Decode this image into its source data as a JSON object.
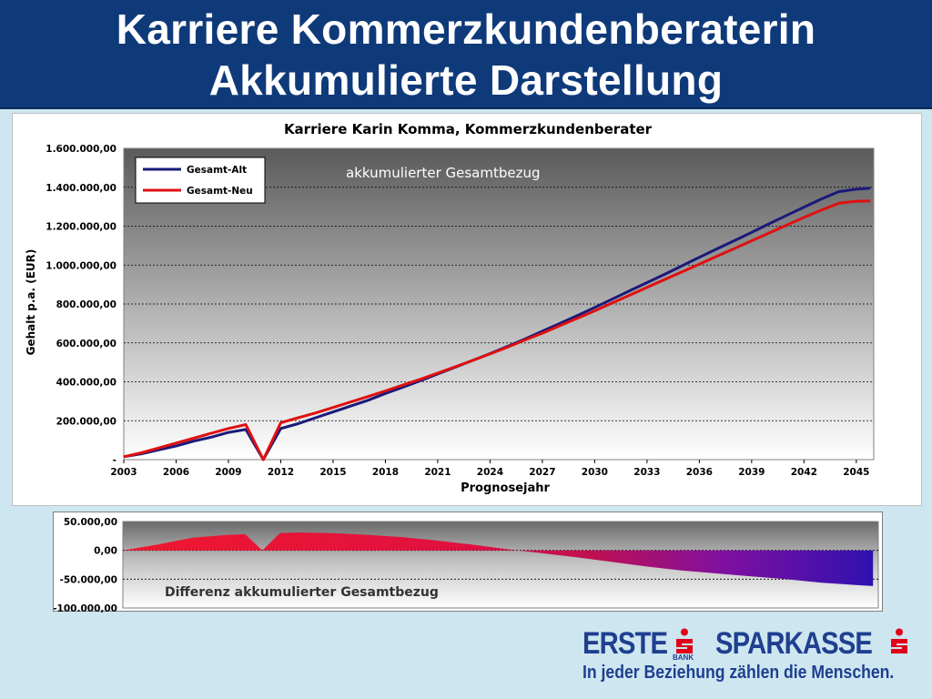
{
  "header": {
    "title_line1": "Karriere Kommerzkundenberaterin",
    "title_line2": "Akkumulierte Darstellung"
  },
  "chart_data": [
    {
      "type": "line",
      "title": "Karriere Karin Komma, Kommerzkundenberater",
      "annotation": "akkumulierter Gesamtbezug",
      "xlabel": "Prognosejahr",
      "ylabel": "Gehalt p.a. (EUR)",
      "xlim": [
        2003,
        2046
      ],
      "ylim": [
        0,
        1600000
      ],
      "x_tick_labels": [
        "2003",
        "2006",
        "2009",
        "2012",
        "2015",
        "2018",
        "2021",
        "2024",
        "2027",
        "2030",
        "2033",
        "2036",
        "2039",
        "2042",
        "2045"
      ],
      "y_tick_labels": [
        "-",
        "200.000,00",
        "400.000,00",
        "600.000,00",
        "800.000,00",
        "1.000.000,00",
        "1.200.000,00",
        "1.400.000,00",
        "1.600.000,00"
      ],
      "grid": true,
      "legend_position": "top-left",
      "series": [
        {
          "name": "Gesamt-Alt",
          "color": "#1a1a7a",
          "points": [
            [
              2003,
              15000
            ],
            [
              2004,
              30000
            ],
            [
              2005,
              50000
            ],
            [
              2006,
              70000
            ],
            [
              2007,
              95000
            ],
            [
              2008,
              115000
            ],
            [
              2009,
              140000
            ],
            [
              2010,
              155000
            ],
            [
              2011,
              0
            ],
            [
              2012,
              160000
            ],
            [
              2013,
              185000
            ],
            [
              2014,
              215000
            ],
            [
              2015,
              245000
            ],
            [
              2016,
              275000
            ],
            [
              2017,
              305000
            ],
            [
              2018,
              340000
            ],
            [
              2019,
              372000
            ],
            [
              2020,
              405000
            ],
            [
              2021,
              440000
            ],
            [
              2022,
              475000
            ],
            [
              2023,
              510000
            ],
            [
              2024,
              545000
            ],
            [
              2025,
              582000
            ],
            [
              2026,
              620000
            ],
            [
              2027,
              660000
            ],
            [
              2028,
              700000
            ],
            [
              2029,
              740000
            ],
            [
              2030,
              782000
            ],
            [
              2031,
              825000
            ],
            [
              2032,
              868000
            ],
            [
              2033,
              910000
            ],
            [
              2034,
              952000
            ],
            [
              2035,
              996000
            ],
            [
              2036,
              1040000
            ],
            [
              2037,
              1083000
            ],
            [
              2038,
              1125000
            ],
            [
              2039,
              1168000
            ],
            [
              2040,
              1212000
            ],
            [
              2041,
              1255000
            ],
            [
              2042,
              1298000
            ],
            [
              2043,
              1340000
            ],
            [
              2044,
              1378000
            ],
            [
              2045,
              1390000
            ],
            [
              2045.8,
              1395000
            ]
          ]
        },
        {
          "name": "Gesamt-Neu",
          "color": "#e01010",
          "points": [
            [
              2003,
              15000
            ],
            [
              2004,
              35000
            ],
            [
              2005,
              60000
            ],
            [
              2006,
              85000
            ],
            [
              2007,
              110000
            ],
            [
              2008,
              135000
            ],
            [
              2009,
              160000
            ],
            [
              2010,
              180000
            ],
            [
              2011,
              0
            ],
            [
              2012,
              190000
            ],
            [
              2013,
              215000
            ],
            [
              2014,
              240000
            ],
            [
              2015,
              268000
            ],
            [
              2016,
              296000
            ],
            [
              2017,
              324000
            ],
            [
              2018,
              353000
            ],
            [
              2019,
              383000
            ],
            [
              2020,
              413000
            ],
            [
              2021,
              445000
            ],
            [
              2022,
              477000
            ],
            [
              2023,
              510000
            ],
            [
              2024,
              543000
            ],
            [
              2025,
              578000
            ],
            [
              2026,
              615000
            ],
            [
              2027,
              650000
            ],
            [
              2028,
              688000
            ],
            [
              2029,
              726000
            ],
            [
              2030,
              765000
            ],
            [
              2031,
              805000
            ],
            [
              2032,
              845000
            ],
            [
              2033,
              885000
            ],
            [
              2034,
              925000
            ],
            [
              2035,
              965000
            ],
            [
              2036,
              1005000
            ],
            [
              2037,
              1045000
            ],
            [
              2038,
              1085000
            ],
            [
              2039,
              1125000
            ],
            [
              2040,
              1165000
            ],
            [
              2041,
              1205000
            ],
            [
              2042,
              1245000
            ],
            [
              2043,
              1283000
            ],
            [
              2044,
              1318000
            ],
            [
              2045,
              1328000
            ],
            [
              2045.8,
              1330000
            ]
          ]
        }
      ]
    },
    {
      "type": "area",
      "title": "Differenz akkumulierter Gesamtbezug",
      "ylim": [
        -100000,
        50000
      ],
      "y_tick_labels": [
        "50.000,00",
        "0,00",
        "-50.000,00",
        "-100.000,00"
      ],
      "grid": true,
      "series": [
        {
          "name": "",
          "color_positive": "#e01030",
          "color_negative": "#4010a0",
          "points": [
            [
              2003,
              0
            ],
            [
              2005,
              10000
            ],
            [
              2007,
              22000
            ],
            [
              2009,
              27000
            ],
            [
              2010,
              28000
            ],
            [
              2011,
              0
            ],
            [
              2012,
              30000
            ],
            [
              2013,
              31000
            ],
            [
              2015,
              30000
            ],
            [
              2017,
              27000
            ],
            [
              2019,
              23000
            ],
            [
              2021,
              17000
            ],
            [
              2023,
              10000
            ],
            [
              2025,
              2000
            ],
            [
              2027,
              -5000
            ],
            [
              2029,
              -12000
            ],
            [
              2031,
              -20000
            ],
            [
              2033,
              -28000
            ],
            [
              2035,
              -35000
            ],
            [
              2037,
              -40000
            ],
            [
              2039,
              -45000
            ],
            [
              2041,
              -50000
            ],
            [
              2043,
              -56000
            ],
            [
              2045,
              -60000
            ],
            [
              2046,
              -62000
            ]
          ]
        }
      ]
    }
  ],
  "footer": {
    "brand_erste": "ERSTE",
    "brand_bank": "BANK",
    "brand_sparkasse": "SPARKASSE",
    "slogan": "In jeder Beziehung zählen die Menschen.",
    "brand_color": "#1f3f8f",
    "accent_color": "#e0001a"
  }
}
